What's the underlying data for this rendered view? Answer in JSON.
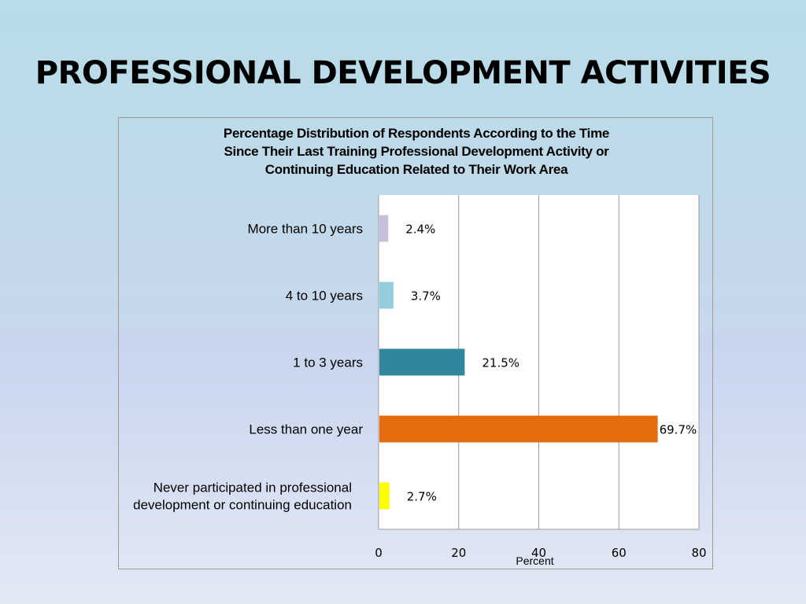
{
  "slide": {
    "title": "PROFESSIONAL DEVELOPMENT ACTIVITIES"
  },
  "chart_data": {
    "type": "bar",
    "orientation": "horizontal",
    "title_lines": [
      "Percentage Distribution of Respondents According to the Time",
      "Since Their Last Training Professional Development Activity or",
      "Continuing Education Related to Their Work Area"
    ],
    "categories": [
      [
        "More than 10 years"
      ],
      [
        "4 to 10 years"
      ],
      [
        "1 to 3 years"
      ],
      [
        "Less than one year"
      ],
      [
        "Never participated in professional",
        "development or continuing education"
      ]
    ],
    "values": [
      2.4,
      3.7,
      21.5,
      69.7,
      2.7
    ],
    "value_labels": [
      "2.4%",
      "3.7%",
      "21.5%",
      "69.7%",
      "2.7%"
    ],
    "colors": [
      "#c7bfdc",
      "#93cddd",
      "#31859c",
      "#e46c0a",
      "#ffff00"
    ],
    "xlabel": "Percent",
    "ylabel": "",
    "xlim": [
      0,
      80
    ],
    "xticks": [
      0,
      20,
      40,
      60,
      80
    ],
    "grid": "vertical",
    "legend": "none"
  }
}
